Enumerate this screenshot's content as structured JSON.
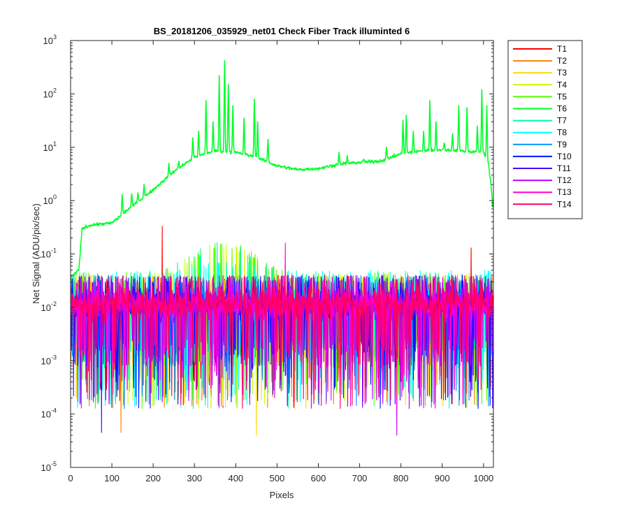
{
  "chart_data": {
    "type": "line",
    "title": "BS_20181206_035929_net01   Check Fiber     Track illuminted 6",
    "xlabel": "Pixels",
    "ylabel": "Net Signal (ADU/pix/sec)",
    "xlim": [
      0,
      1024
    ],
    "ylim": [
      1e-05,
      1000
    ],
    "yscale": "log",
    "xticks": [
      0,
      100,
      200,
      300,
      400,
      500,
      600,
      700,
      800,
      900,
      1000
    ],
    "yticks": [
      {
        "value": 1e-05,
        "base": "10",
        "exp": "-5"
      },
      {
        "value": 0.0001,
        "base": "10",
        "exp": "-4"
      },
      {
        "value": 0.001,
        "base": "10",
        "exp": "-3"
      },
      {
        "value": 0.01,
        "base": "10",
        "exp": "-2"
      },
      {
        "value": 0.1,
        "base": "10",
        "exp": "-1"
      },
      {
        "value": 1,
        "base": "10",
        "exp": "0"
      },
      {
        "value": 10,
        "base": "10",
        "exp": "1"
      },
      {
        "value": 100,
        "base": "10",
        "exp": "2"
      },
      {
        "value": 1000,
        "base": "10",
        "exp": "3"
      }
    ],
    "legend_position": "outside-top-right",
    "series": [
      {
        "name": "T1",
        "color": "#ff0000"
      },
      {
        "name": "T2",
        "color": "#ff7f00"
      },
      {
        "name": "T3",
        "color": "#ffd700"
      },
      {
        "name": "T4",
        "color": "#c8ff00"
      },
      {
        "name": "T5",
        "color": "#55ff00"
      },
      {
        "name": "T6",
        "color": "#00ff2a"
      },
      {
        "name": "T7",
        "color": "#00ffaa"
      },
      {
        "name": "T8",
        "color": "#00ffff"
      },
      {
        "name": "T9",
        "color": "#0095ff"
      },
      {
        "name": "T10",
        "color": "#0015ff"
      },
      {
        "name": "T11",
        "color": "#4000ff"
      },
      {
        "name": "T12",
        "color": "#c000ff"
      },
      {
        "name": "T13",
        "color": "#ff00d4"
      },
      {
        "name": "T14",
        "color": "#ff0060"
      }
    ],
    "illuminated_series": "T6",
    "illuminated_profile": {
      "x": [
        0,
        20,
        28,
        50,
        100,
        130,
        150,
        200,
        250,
        300,
        350,
        400,
        450,
        500,
        550,
        600,
        650,
        700,
        750,
        800,
        850,
        900,
        950,
        1000,
        1012,
        1018,
        1024
      ],
      "y": [
        0.035,
        0.05,
        0.3,
        0.35,
        0.38,
        0.6,
        0.8,
        1.6,
        3.5,
        6.5,
        8.5,
        8.0,
        6.5,
        4.5,
        3.8,
        4.0,
        4.8,
        5.2,
        5.5,
        7.5,
        8.5,
        9.0,
        8.5,
        8.0,
        5.0,
        2.0,
        0.6
      ]
    },
    "illuminated_peaks": [
      {
        "x": 125,
        "y": 1.3
      },
      {
        "x": 148,
        "y": 1.35
      },
      {
        "x": 163,
        "y": 1.4
      },
      {
        "x": 178,
        "y": 2.0
      },
      {
        "x": 215,
        "y": 2.0
      },
      {
        "x": 238,
        "y": 5.0
      },
      {
        "x": 262,
        "y": 5.5
      },
      {
        "x": 296,
        "y": 15
      },
      {
        "x": 310,
        "y": 20
      },
      {
        "x": 328,
        "y": 75
      },
      {
        "x": 345,
        "y": 30
      },
      {
        "x": 360,
        "y": 220
      },
      {
        "x": 373,
        "y": 420
      },
      {
        "x": 382,
        "y": 150
      },
      {
        "x": 393,
        "y": 60
      },
      {
        "x": 420,
        "y": 35
      },
      {
        "x": 445,
        "y": 80
      },
      {
        "x": 453,
        "y": 30
      },
      {
        "x": 478,
        "y": 14
      },
      {
        "x": 650,
        "y": 8
      },
      {
        "x": 670,
        "y": 7
      },
      {
        "x": 710,
        "y": 6
      },
      {
        "x": 765,
        "y": 10
      },
      {
        "x": 805,
        "y": 32
      },
      {
        "x": 813,
        "y": 40
      },
      {
        "x": 830,
        "y": 20
      },
      {
        "x": 855,
        "y": 20
      },
      {
        "x": 870,
        "y": 75
      },
      {
        "x": 885,
        "y": 30
      },
      {
        "x": 905,
        "y": 12
      },
      {
        "x": 925,
        "y": 18
      },
      {
        "x": 940,
        "y": 60
      },
      {
        "x": 960,
        "y": 55
      },
      {
        "x": 985,
        "y": 25
      },
      {
        "x": 996,
        "y": 120
      },
      {
        "x": 1008,
        "y": 60
      }
    ],
    "other_series_level": {
      "T4_T5_T7_hump": {
        "x_center": 370,
        "peak": 0.14
      },
      "baseline": 0.012
    },
    "notable_spikes": [
      {
        "series": "T1",
        "x": 222,
        "y": 0.33
      },
      {
        "series": "T1",
        "x": 970,
        "y": 0.13
      },
      {
        "series": "T13",
        "x": 520,
        "y": 0.16
      },
      {
        "series": "T2",
        "x": 122,
        "y": 4.5e-05
      },
      {
        "series": "T11",
        "x": 75,
        "y": 4.5e-05
      },
      {
        "series": "T3",
        "x": 450,
        "y": 4e-05
      },
      {
        "series": "T12",
        "x": 790,
        "y": 4e-05
      }
    ]
  }
}
